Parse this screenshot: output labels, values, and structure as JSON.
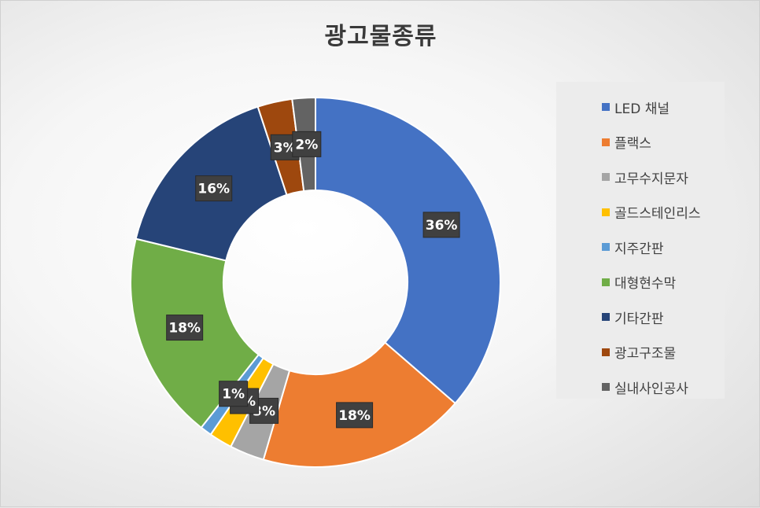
{
  "chart_data": {
    "type": "pie",
    "variant": "doughnut",
    "title": "광고물종류",
    "slices": [
      {
        "name": "LED 채널",
        "value": 36,
        "label": "36%",
        "color": "#4472C4"
      },
      {
        "name": "플랙스",
        "value": 18,
        "label": "18%",
        "color": "#ED7D31"
      },
      {
        "name": "고무수지문자",
        "value": 3,
        "label": "3%",
        "color": "#A5A5A5"
      },
      {
        "name": "골드스테인리스",
        "value": 2,
        "label": "2%",
        "color": "#FFC000"
      },
      {
        "name": "지주간판",
        "value": 1,
        "label": "1%",
        "color": "#5B9BD5"
      },
      {
        "name": "대형현수막",
        "value": 18,
        "label": "18%",
        "color": "#70AD47"
      },
      {
        "name": "기타간판",
        "value": 16,
        "label": "16%",
        "color": "#264478"
      },
      {
        "name": "광고구조물",
        "value": 3,
        "label": "3%",
        "color": "#9E480E"
      },
      {
        "name": "실내사인공사",
        "value": 2,
        "label": "2%",
        "color": "#636363"
      }
    ],
    "legend_position": "right",
    "start_angle_deg": 0,
    "direction": "clockwise"
  }
}
